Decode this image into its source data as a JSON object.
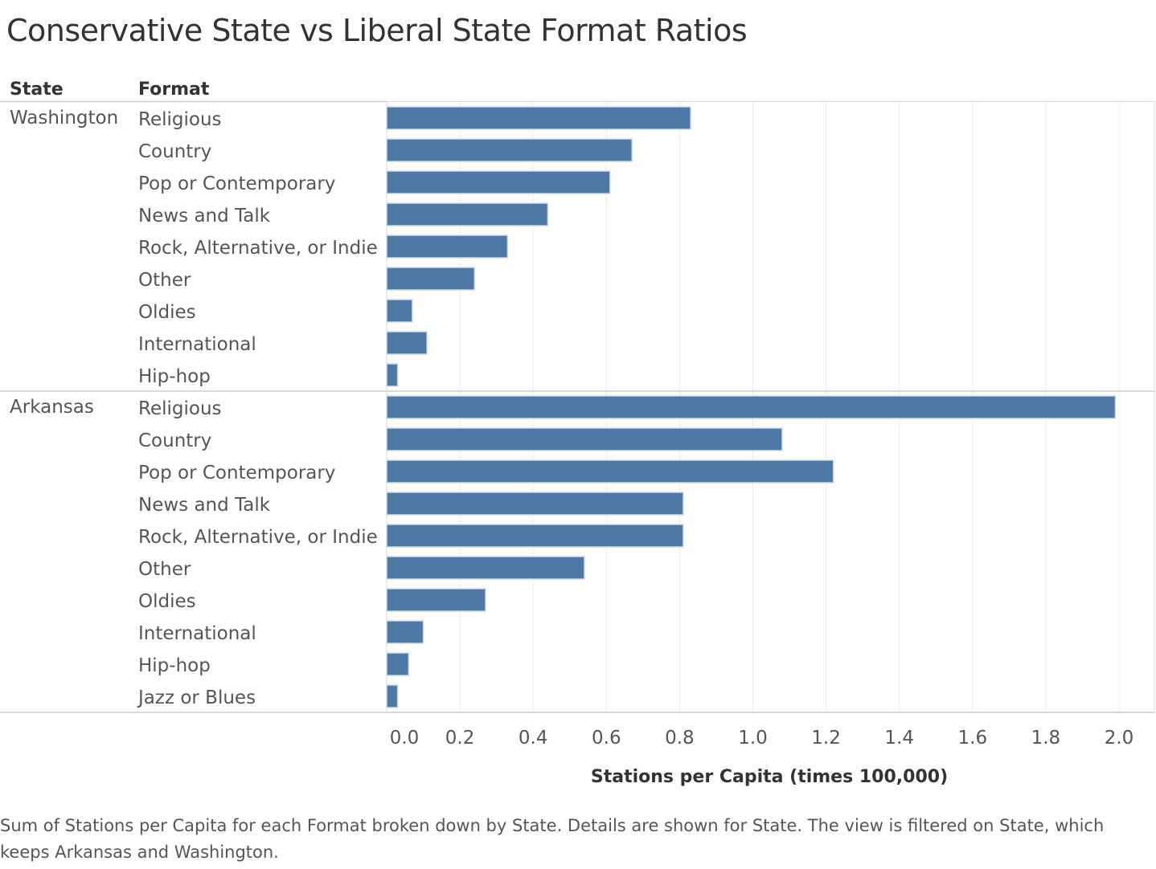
{
  "chart_data": {
    "type": "bar",
    "orientation": "horizontal",
    "title": "Conservative State vs Liberal State Format Ratios",
    "row_headers": {
      "state": "State",
      "format": "Format"
    },
    "xlabel": "Stations per Capita (times 100,000)",
    "xlim": [
      0,
      2.0
    ],
    "xticks": [
      "0.0",
      "0.2",
      "0.4",
      "0.6",
      "0.8",
      "1.0",
      "1.2",
      "1.4",
      "1.6",
      "1.8",
      "2.0"
    ],
    "grid": "vertical",
    "bar_color": "#4e79a7",
    "groups": [
      {
        "state": "Washington",
        "rows": [
          {
            "format": "Religious",
            "value": 0.83
          },
          {
            "format": "Country",
            "value": 0.67
          },
          {
            "format": "Pop or Contemporary",
            "value": 0.61
          },
          {
            "format": "News and Talk",
            "value": 0.44
          },
          {
            "format": "Rock, Alternative, or Indie",
            "value": 0.33
          },
          {
            "format": "Other",
            "value": 0.24
          },
          {
            "format": "Oldies",
            "value": 0.07
          },
          {
            "format": "International",
            "value": 0.11
          },
          {
            "format": "Hip-hop",
            "value": 0.03
          }
        ]
      },
      {
        "state": "Arkansas",
        "rows": [
          {
            "format": "Religious",
            "value": 1.99
          },
          {
            "format": "Country",
            "value": 1.08
          },
          {
            "format": "Pop or Contemporary",
            "value": 1.22
          },
          {
            "format": "News and Talk",
            "value": 0.81
          },
          {
            "format": "Rock, Alternative, or Indie",
            "value": 0.81
          },
          {
            "format": "Other",
            "value": 0.54
          },
          {
            "format": "Oldies",
            "value": 0.27
          },
          {
            "format": "International",
            "value": 0.1
          },
          {
            "format": "Hip-hop",
            "value": 0.06
          },
          {
            "format": "Jazz or Blues",
            "value": 0.03
          }
        ]
      }
    ],
    "caption": "Sum of Stations per Capita for each Format broken down by State.  Details are shown for State. The view is filtered on State, which keeps Arkansas and Washington."
  }
}
